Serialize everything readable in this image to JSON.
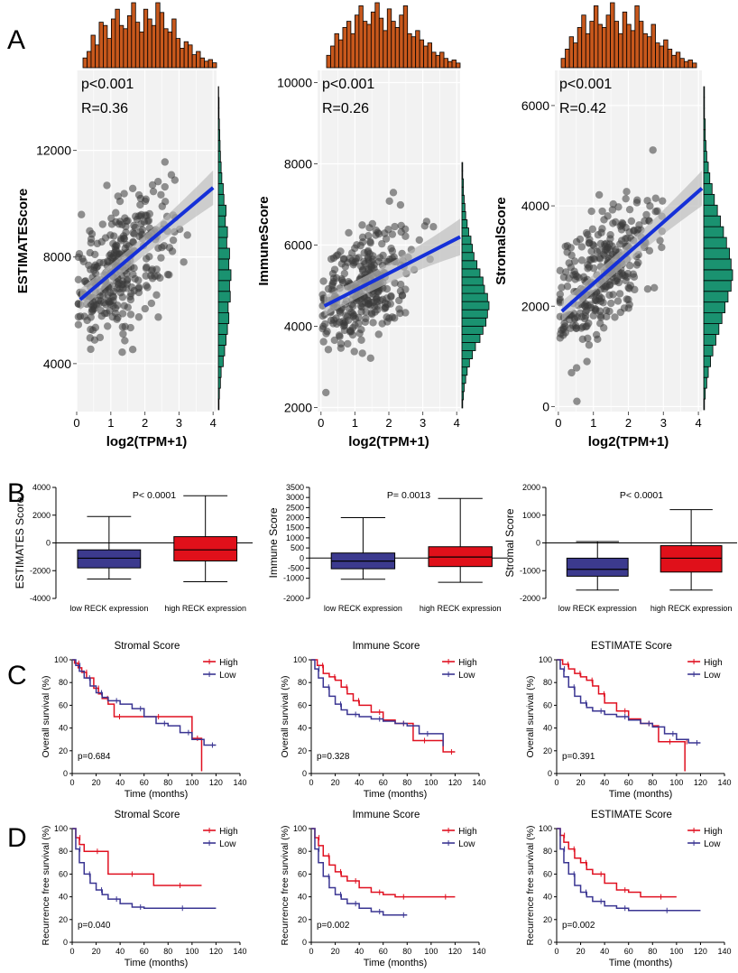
{
  "figure": {
    "panel_labels": [
      "A",
      "B",
      "C",
      "D"
    ]
  },
  "colors": {
    "hist_top": "#c8581c",
    "hist_side": "#1a9270",
    "fit_line": "#1530d8",
    "ci_band": "#b8b8b8",
    "grid_bg": "#f2f2f2",
    "point": "#3a3a3a",
    "box_low": "#3c3a8e",
    "box_high": "#e0101a",
    "km_high": "#e01020",
    "km_low": "#3a3592"
  },
  "chart_data": [
    {
      "type": "scatter",
      "panel": "A",
      "title": "",
      "xlabel": "log2(TPM+1)",
      "ylabel": "ESTIMATEScore",
      "xlim": [
        0,
        4.1
      ],
      "ylim": [
        2200,
        15000
      ],
      "xticks": [
        "0",
        "1",
        "2",
        "3",
        "4"
      ],
      "yticks": [
        "4000",
        "8000",
        "12000"
      ],
      "ytick_values": [
        4000,
        8000,
        12000
      ],
      "annotations": [
        "p<0.001",
        "R=0.36"
      ],
      "n_points": 320,
      "fit": {
        "x": [
          0.1,
          4.0
        ],
        "y": [
          6400,
          10600
        ],
        "ci_half_width": [
          400,
          650
        ]
      },
      "x_spread": {
        "mode": 1.3,
        "sd": 0.75
      },
      "y_resid_sd": 2100,
      "top_hist": [
        6,
        10,
        20,
        14,
        28,
        26,
        18,
        30,
        36,
        26,
        24,
        32,
        40,
        28,
        22,
        36,
        30,
        26,
        40,
        34,
        24,
        22,
        30,
        18,
        12,
        16,
        14,
        8,
        10,
        6,
        4,
        5,
        3
      ],
      "side_hist": [
        2,
        3,
        6,
        8,
        14,
        18,
        22,
        26,
        30,
        28,
        34,
        32,
        36,
        30,
        32,
        24,
        26,
        20,
        22,
        16,
        14,
        10,
        8,
        6,
        5,
        4,
        3,
        2,
        2,
        1
      ]
    },
    {
      "type": "scatter",
      "panel": "A",
      "title": "",
      "xlabel": "log2(TPM+1)",
      "ylabel": "ImmuneScore",
      "xlim": [
        -0.1,
        4.1
      ],
      "ylim": [
        1900,
        10300
      ],
      "xticks": [
        "0",
        "1",
        "2",
        "3",
        "4"
      ],
      "yticks": [
        "2000",
        "4000",
        "6000",
        "8000",
        "10000"
      ],
      "ytick_values": [
        2000,
        4000,
        6000,
        8000,
        10000
      ],
      "annotations": [
        "p<0.001",
        "R=0.26"
      ],
      "n_points": 320,
      "fit": {
        "x": [
          0.1,
          4.1
        ],
        "y": [
          4500,
          6200
        ],
        "ci_half_width": [
          250,
          450
        ]
      },
      "x_spread": {
        "mode": 1.2,
        "sd": 0.75
      },
      "y_resid_sd": 1300,
      "top_hist": [
        8,
        14,
        22,
        18,
        26,
        30,
        22,
        34,
        40,
        30,
        28,
        36,
        42,
        32,
        24,
        38,
        30,
        26,
        34,
        40,
        22,
        20,
        24,
        18,
        14,
        16,
        10,
        8,
        10,
        6,
        4,
        5,
        3
      ],
      "side_hist": [
        1,
        2,
        3,
        5,
        7,
        10,
        14,
        18,
        24,
        28,
        32,
        34,
        36,
        34,
        30,
        28,
        24,
        20,
        16,
        14,
        12,
        9,
        7,
        5,
        4,
        3,
        2,
        2,
        1,
        1
      ]
    },
    {
      "type": "scatter",
      "panel": "A",
      "title": "",
      "xlabel": "log2(TPM+1)",
      "ylabel": "StromalScore",
      "xlim": [
        -0.1,
        4.1
      ],
      "ylim": [
        -100,
        6700
      ],
      "xticks": [
        "0",
        "1",
        "2",
        "3",
        "4"
      ],
      "yticks": [
        "0",
        "2000",
        "4000",
        "6000"
      ],
      "ytick_values": [
        0,
        2000,
        4000,
        6000
      ],
      "annotations": [
        "p<0.001",
        "R=0.42"
      ],
      "n_points": 320,
      "fit": {
        "x": [
          0.1,
          4.1
        ],
        "y": [
          1900,
          4350
        ],
        "ci_half_width": [
          200,
          350
        ]
      },
      "x_spread": {
        "mode": 1.3,
        "sd": 0.75
      },
      "y_resid_sd": 1150,
      "top_hist": [
        6,
        12,
        20,
        16,
        26,
        34,
        22,
        30,
        40,
        28,
        26,
        34,
        42,
        30,
        22,
        36,
        28,
        24,
        40,
        30,
        22,
        20,
        28,
        16,
        14,
        18,
        12,
        8,
        10,
        6,
        4,
        5,
        3
      ],
      "side_hist": [
        1,
        2,
        4,
        6,
        9,
        12,
        16,
        20,
        24,
        28,
        32,
        36,
        38,
        36,
        34,
        30,
        26,
        22,
        18,
        14,
        11,
        8,
        6,
        4,
        3,
        2,
        2,
        1,
        1,
        1
      ]
    },
    {
      "type": "box",
      "panel": "B",
      "title": "P< 0.0001",
      "ylabel": "ESTIMATES Score",
      "categories": [
        "low RECK  expression",
        "high RECK expression"
      ],
      "ylim": [
        -4000,
        4000
      ],
      "yticks": [
        "-4000",
        "-2000",
        "0",
        "2000",
        "4000"
      ],
      "ytick_values": [
        -4000,
        -2000,
        0,
        2000,
        4000
      ],
      "boxes": [
        {
          "whisker_low": -2600,
          "q1": -1800,
          "median": -1100,
          "q3": -500,
          "whisker_high": 1900
        },
        {
          "whisker_low": -2800,
          "q1": -1300,
          "median": -500,
          "q3": 450,
          "whisker_high": 3400
        }
      ]
    },
    {
      "type": "box",
      "panel": "B",
      "title": "P= 0.0013",
      "ylabel": "Immune Score",
      "categories": [
        "low RECK  expression",
        "high RECK expression"
      ],
      "ylim": [
        -2000,
        3500
      ],
      "yticks": [
        "-2000",
        "-1000",
        "-500",
        "0",
        "500",
        "1000",
        "1500",
        "2000",
        "2500",
        "3000",
        "3500"
      ],
      "ytick_values": [
        -2000,
        -1000,
        -500,
        0,
        500,
        1000,
        1500,
        2000,
        2500,
        3000,
        3500
      ],
      "boxes": [
        {
          "whisker_low": -1050,
          "q1": -530,
          "median": -150,
          "q3": 250,
          "whisker_high": 2000
        },
        {
          "whisker_low": -1200,
          "q1": -420,
          "median": 50,
          "q3": 560,
          "whisker_high": 2950
        }
      ]
    },
    {
      "type": "box",
      "panel": "B",
      "title": "P< 0.0001",
      "ylabel": "Stromal Score",
      "categories": [
        "low RECK  expression",
        "high RECK expression"
      ],
      "ylim": [
        -2000,
        2000
      ],
      "yticks": [
        "-2000",
        "-1000",
        "0",
        "1000",
        "2000"
      ],
      "ytick_values": [
        -2000,
        -1000,
        0,
        1000,
        2000
      ],
      "boxes": [
        {
          "whisker_low": -1700,
          "q1": -1200,
          "median": -950,
          "q3": -550,
          "whisker_high": 50
        },
        {
          "whisker_low": -1700,
          "q1": -1050,
          "median": -550,
          "q3": -100,
          "whisker_high": 1200
        }
      ]
    },
    {
      "type": "line",
      "panel": "C",
      "title": "Stromal Score",
      "xlabel": "Time (months)",
      "ylabel": "Overall survival (%)",
      "xlim": [
        0,
        140
      ],
      "ylim": [
        0,
        100
      ],
      "xticks": [
        "0",
        "20",
        "40",
        "60",
        "80",
        "100",
        "120",
        "140"
      ],
      "yticks": [
        "0",
        "20",
        "40",
        "60",
        "80",
        "100"
      ],
      "annotation": "p=0.684",
      "legend": [
        "High",
        "Low"
      ],
      "series": [
        {
          "name": "High",
          "x": [
            0,
            2,
            5,
            8,
            12,
            18,
            22,
            25,
            30,
            35,
            40,
            58,
            82,
            100,
            105,
            108
          ],
          "y": [
            100,
            97,
            93,
            89,
            84,
            75,
            70,
            66,
            61,
            50,
            50,
            50,
            50,
            31,
            31,
            2
          ]
        },
        {
          "name": "Low",
          "x": [
            0,
            3,
            6,
            10,
            15,
            20,
            25,
            30,
            40,
            50,
            60,
            70,
            80,
            90,
            100,
            110,
            120
          ],
          "y": [
            100,
            95,
            90,
            84,
            77,
            71,
            67,
            64,
            61,
            57,
            50,
            44,
            42,
            36,
            30,
            25,
            25
          ]
        }
      ]
    },
    {
      "type": "line",
      "panel": "C",
      "title": "Immune Score",
      "xlabel": "Time (months)",
      "ylabel": "Overall survival (%)",
      "xlim": [
        0,
        140
      ],
      "ylim": [
        0,
        100
      ],
      "xticks": [
        "0",
        "20",
        "40",
        "60",
        "80",
        "100",
        "120",
        "140"
      ],
      "yticks": [
        "0",
        "20",
        "40",
        "60",
        "80",
        "100"
      ],
      "annotation": "p=0.328",
      "legend": [
        "High",
        "Low"
      ],
      "series": [
        {
          "name": "High",
          "x": [
            0,
            5,
            10,
            15,
            20,
            25,
            30,
            35,
            40,
            50,
            60,
            70,
            80,
            85,
            100,
            110,
            120
          ],
          "y": [
            100,
            95,
            88,
            85,
            82,
            76,
            70,
            64,
            60,
            54,
            47,
            44,
            44,
            29,
            29,
            19,
            19
          ]
        },
        {
          "name": "Low",
          "x": [
            0,
            3,
            6,
            10,
            15,
            20,
            25,
            30,
            40,
            50,
            60,
            70,
            80,
            90,
            100,
            110
          ],
          "y": [
            100,
            92,
            84,
            76,
            68,
            61,
            56,
            52,
            50,
            48,
            46,
            44,
            42,
            35,
            35,
            24
          ]
        }
      ]
    },
    {
      "type": "line",
      "panel": "C",
      "title": "ESTIMATE Score",
      "xlabel": "Time (months)",
      "ylabel": "Overall survival (%)",
      "xlim": [
        0,
        140
      ],
      "ylim": [
        0,
        100
      ],
      "xticks": [
        "0",
        "20",
        "40",
        "60",
        "80",
        "100",
        "120",
        "140"
      ],
      "yticks": [
        "0",
        "20",
        "40",
        "60",
        "80",
        "100"
      ],
      "annotation": "p=0.391",
      "legend": [
        "High",
        "Low"
      ],
      "series": [
        {
          "name": "High",
          "x": [
            0,
            5,
            10,
            15,
            20,
            25,
            30,
            35,
            40,
            50,
            60,
            70,
            80,
            85,
            100,
            106,
            107
          ],
          "y": [
            100,
            96,
            92,
            88,
            85,
            82,
            77,
            70,
            62,
            55,
            48,
            44,
            42,
            28,
            28,
            28,
            2
          ]
        },
        {
          "name": "Low",
          "x": [
            0,
            3,
            6,
            10,
            15,
            20,
            25,
            30,
            40,
            50,
            60,
            70,
            80,
            90,
            100,
            110,
            120
          ],
          "y": [
            100,
            92,
            85,
            76,
            68,
            62,
            58,
            55,
            52,
            50,
            47,
            44,
            41,
            35,
            30,
            27,
            27
          ]
        }
      ]
    },
    {
      "type": "line",
      "panel": "D",
      "title": "Stromal Score",
      "xlabel": "Time (months)",
      "ylabel": "Recurrence free survival (%)",
      "xlim": [
        0,
        140
      ],
      "ylim": [
        0,
        100
      ],
      "xticks": [
        "0",
        "20",
        "40",
        "60",
        "80",
        "100",
        "120",
        "140"
      ],
      "yticks": [
        "0",
        "20",
        "40",
        "60",
        "80",
        "100"
      ],
      "annotation": "p=0.040",
      "legend": [
        "High",
        "Low"
      ],
      "series": [
        {
          "name": "High",
          "x": [
            0,
            3,
            6,
            10,
            28,
            30,
            66,
            68,
            108
          ],
          "y": [
            100,
            92,
            86,
            80,
            80,
            60,
            60,
            50,
            50
          ]
        },
        {
          "name": "Low",
          "x": [
            0,
            3,
            6,
            10,
            15,
            20,
            25,
            30,
            40,
            50,
            60,
            80,
            100,
            120
          ],
          "y": [
            100,
            82,
            70,
            60,
            52,
            46,
            42,
            38,
            34,
            31,
            30,
            30,
            30,
            30
          ]
        }
      ]
    },
    {
      "type": "line",
      "panel": "D",
      "title": "Immune Score",
      "xlabel": "Time (months)",
      "ylabel": "Recurrence free survival (%)",
      "xlim": [
        0,
        140
      ],
      "ylim": [
        0,
        100
      ],
      "xticks": [
        "0",
        "20",
        "40",
        "60",
        "80",
        "100",
        "120",
        "140"
      ],
      "yticks": [
        "0",
        "20",
        "40",
        "60",
        "80",
        "100"
      ],
      "annotation": "p=0.002",
      "legend": [
        "High",
        "Low"
      ],
      "series": [
        {
          "name": "High",
          "x": [
            0,
            3,
            6,
            10,
            15,
            20,
            25,
            30,
            40,
            50,
            60,
            70,
            80,
            100,
            120
          ],
          "y": [
            100,
            92,
            85,
            76,
            68,
            62,
            58,
            54,
            48,
            44,
            42,
            40,
            40,
            40,
            40
          ]
        },
        {
          "name": "Low",
          "x": [
            0,
            3,
            6,
            10,
            15,
            20,
            25,
            30,
            40,
            50,
            60,
            70,
            80
          ],
          "y": [
            100,
            82,
            70,
            58,
            48,
            42,
            38,
            34,
            30,
            27,
            24,
            24,
            24
          ]
        }
      ]
    },
    {
      "type": "line",
      "panel": "D",
      "title": "ESTIMATE Score",
      "xlabel": "Time (months)",
      "ylabel": "Recurrence free survival (%)",
      "xlim": [
        0,
        140
      ],
      "ylim": [
        0,
        100
      ],
      "xticks": [
        "0",
        "20",
        "40",
        "60",
        "80",
        "100",
        "120",
        "140"
      ],
      "yticks": [
        "0",
        "20",
        "40",
        "60",
        "80",
        "100"
      ],
      "annotation": "p=0.002",
      "legend": [
        "High",
        "Low"
      ],
      "series": [
        {
          "name": "High",
          "x": [
            0,
            3,
            6,
            10,
            15,
            20,
            25,
            30,
            40,
            50,
            60,
            70,
            100
          ],
          "y": [
            100,
            94,
            88,
            82,
            74,
            70,
            64,
            60,
            52,
            46,
            44,
            40,
            40
          ]
        },
        {
          "name": "Low",
          "x": [
            0,
            3,
            6,
            10,
            15,
            20,
            25,
            30,
            40,
            50,
            60,
            80,
            100,
            120
          ],
          "y": [
            100,
            82,
            70,
            60,
            50,
            44,
            40,
            36,
            32,
            30,
            28,
            28,
            28,
            28
          ]
        }
      ]
    }
  ]
}
